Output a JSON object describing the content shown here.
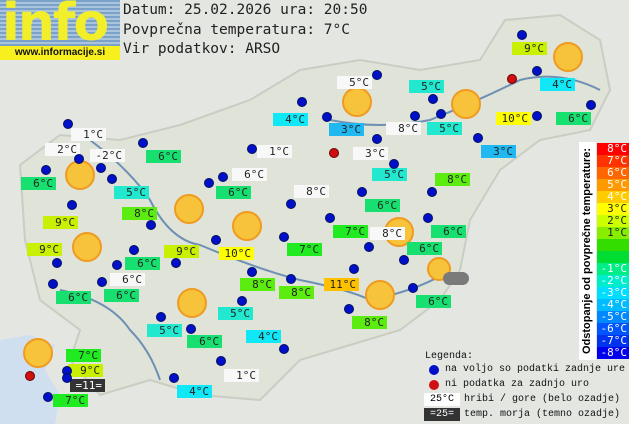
{
  "logo": {
    "text": "info",
    "url": "www.informacije.si"
  },
  "header": {
    "date_line": "Datum: 25.02.2026 ura: 20:50",
    "avg_line": "Povprečna temperatura: 7°C",
    "source_line": "Vir podatkov: ARSO"
  },
  "stations": [
    {
      "temp": "1°C",
      "bg": "#f8f8f8"
    },
    {
      "temp": "2°C",
      "bg": "#f8f8f8"
    },
    {
      "temp": "-2°C",
      "bg": "#f8f8f8"
    },
    {
      "temp": "6°C",
      "bg": "#18e070"
    },
    {
      "temp": "5°C",
      "bg": "#22e8d0"
    },
    {
      "temp": "6°C",
      "bg": "#18e070"
    },
    {
      "temp": "8°C",
      "bg": "#5cec10"
    },
    {
      "temp": "9°C",
      "bg": "#c8f000"
    },
    {
      "temp": "4°C",
      "bg": "#10e8f8"
    },
    {
      "temp": "1°C",
      "bg": "#f8f8f8"
    },
    {
      "temp": "6°C",
      "bg": "#f8f8f8"
    },
    {
      "temp": "6°C",
      "bg": "#18e070"
    },
    {
      "temp": "8°C",
      "bg": "#f8f8f8"
    },
    {
      "temp": "5°C",
      "bg": "#f8f8f8"
    },
    {
      "temp": "5°C",
      "bg": "#22e8d0"
    },
    {
      "temp": "3°C",
      "bg": "#20b8f0"
    },
    {
      "temp": "8°C",
      "bg": "#f8f8f8"
    },
    {
      "temp": "5°C",
      "bg": "#22e8d0"
    },
    {
      "temp": "3°C",
      "bg": "#f8f8f8"
    },
    {
      "temp": "3°C",
      "bg": "#20b8f0"
    },
    {
      "temp": "9°C",
      "bg": "#c8f000"
    },
    {
      "temp": "4°C",
      "bg": "#10e8f8"
    },
    {
      "temp": "6°C",
      "bg": "#18e070"
    },
    {
      "temp": "10°C",
      "bg": "#ffff00"
    },
    {
      "temp": "5°C",
      "bg": "#22e8d0"
    },
    {
      "temp": "8°C",
      "bg": "#5cec10"
    },
    {
      "temp": "6°C",
      "bg": "#18e070"
    },
    {
      "temp": "7°C",
      "bg": "#20ea20"
    },
    {
      "temp": "8°C",
      "bg": "#f8f8f8"
    },
    {
      "temp": "6°C",
      "bg": "#18e070"
    },
    {
      "temp": "6°C",
      "bg": "#18e070"
    },
    {
      "temp": "10°C",
      "bg": "#ffff00"
    },
    {
      "temp": "7°C",
      "bg": "#20ea20"
    },
    {
      "temp": "8°C",
      "bg": "#5cec10"
    },
    {
      "temp": "8°C",
      "bg": "#5cec10"
    },
    {
      "temp": "11°C",
      "bg": "#ffc000"
    },
    {
      "temp": "8°C",
      "bg": "#5cec10"
    },
    {
      "temp": "6°C",
      "bg": "#18e070"
    },
    {
      "temp": "5°C",
      "bg": "#22e8d0"
    },
    {
      "temp": "4°C",
      "bg": "#10e8f8"
    },
    {
      "temp": "9°C",
      "bg": "#c8f000"
    },
    {
      "temp": "6°C",
      "bg": "#18e070"
    },
    {
      "temp": "9°C",
      "bg": "#c8f000"
    },
    {
      "temp": "6°C",
      "bg": "#f8f8f8"
    },
    {
      "temp": "6°C",
      "bg": "#18e070"
    },
    {
      "temp": "6°C",
      "bg": "#18e070"
    },
    {
      "temp": "5°C",
      "bg": "#22e8d0"
    },
    {
      "temp": "6°C",
      "bg": "#18e070"
    },
    {
      "temp": "7°C",
      "bg": "#20ea20"
    },
    {
      "temp": "9°C",
      "bg": "#c8f000"
    },
    {
      "temp": "=11=",
      "bg": "#333333",
      "fg": "#ffffff"
    },
    {
      "temp": "7°C",
      "bg": "#20ea20"
    },
    {
      "temp": "4°C",
      "bg": "#10e8f8"
    },
    {
      "temp": "1°C",
      "bg": "#f8f8f8"
    }
  ],
  "scale": {
    "title": "Odstopanje od povprečne temperature:",
    "rows": [
      {
        "label": "8°C",
        "color": "#ff0000"
      },
      {
        "label": "7°C",
        "color": "#ff3300"
      },
      {
        "label": "6°C",
        "color": "#ff6600"
      },
      {
        "label": "5°C",
        "color": "#ff9900"
      },
      {
        "label": "4°C",
        "color": "#ffcc00"
      },
      {
        "label": "3°C",
        "color": "#ffff00"
      },
      {
        "label": "2°C",
        "color": "#ccff00"
      },
      {
        "label": "1°C",
        "color": "#88ee00"
      },
      {
        "label": "",
        "color": "#33dd00"
      },
      {
        "label": "",
        "color": "#00dd33"
      },
      {
        "label": "-1°C",
        "color": "#00ee88"
      },
      {
        "label": "-2°C",
        "color": "#00eecc"
      },
      {
        "label": "-3°C",
        "color": "#00ddff"
      },
      {
        "label": "-4°C",
        "color": "#00bbff"
      },
      {
        "label": "-5°C",
        "color": "#0088ff"
      },
      {
        "label": "-6°C",
        "color": "#0055ff"
      },
      {
        "label": "-7°C",
        "color": "#0033ee"
      },
      {
        "label": "-8°C",
        "color": "#0000ee"
      }
    ]
  },
  "legend": {
    "title": "Legenda:",
    "available": "na voljo so podatki zadnje ure",
    "missing": "ni podatka za zadnjo uro",
    "mountain_sample": "25°C",
    "mountain_text": "hribi / gore (belo ozadje)",
    "sea_sample": "=25=",
    "sea_text": "temp. morja (temno ozadje)"
  },
  "weather_icons": [
    "sun",
    "sun",
    "sun",
    "sun",
    "sun",
    "sun",
    "sun",
    "sun",
    "sun",
    "sun",
    "sun",
    "sun",
    "partly-cloudy"
  ]
}
